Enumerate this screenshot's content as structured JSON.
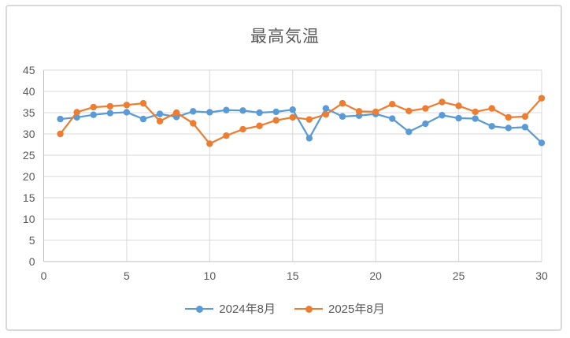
{
  "window": {
    "background": "#ffffff",
    "frame_border_color": "#D9D9D9"
  },
  "chart_data": {
    "type": "line",
    "title": "最高気温",
    "title_color": "#595959",
    "xlabel": "",
    "ylabel": "",
    "x": [
      1,
      2,
      3,
      4,
      5,
      6,
      7,
      8,
      9,
      10,
      11,
      12,
      13,
      14,
      15,
      16,
      17,
      18,
      19,
      20,
      21,
      22,
      23,
      24,
      25,
      26,
      27,
      28,
      29,
      30
    ],
    "series": [
      {
        "name": "2024年8月",
        "color": "#5B9BD5",
        "marker": "circle",
        "values": [
          33.5,
          33.9,
          34.5,
          34.9,
          35.1,
          33.5,
          34.7,
          34.0,
          35.3,
          35.1,
          35.6,
          35.5,
          35.0,
          35.2,
          35.7,
          29.0,
          36.0,
          34.1,
          34.3,
          34.7,
          33.6,
          30.5,
          32.4,
          34.4,
          33.7,
          33.6,
          31.8,
          31.4,
          31.6,
          27.9
        ]
      },
      {
        "name": "2025年8月",
        "color": "#ED7D31",
        "marker": "circle",
        "values": [
          30.0,
          35.1,
          36.3,
          36.5,
          36.8,
          37.2,
          33.0,
          35.0,
          32.5,
          27.7,
          29.6,
          31.1,
          31.9,
          33.2,
          33.9,
          33.4,
          34.6,
          37.2,
          35.3,
          35.2,
          37.0,
          35.4,
          36.0,
          37.5,
          36.6,
          35.2,
          36.0,
          33.9,
          34.1,
          38.4
        ]
      }
    ],
    "xlim": [
      0,
      30
    ],
    "ylim": [
      0,
      45
    ],
    "x_ticks": [
      0,
      5,
      10,
      15,
      20,
      25,
      30
    ],
    "y_ticks": [
      0,
      5,
      10,
      15,
      20,
      25,
      30,
      35,
      40,
      45
    ],
    "grid": true,
    "gridline_color": "#D9D9D9",
    "axis_line_color": "#BFBFBF",
    "tick_label_color": "#595959",
    "legend_position": "bottom"
  }
}
